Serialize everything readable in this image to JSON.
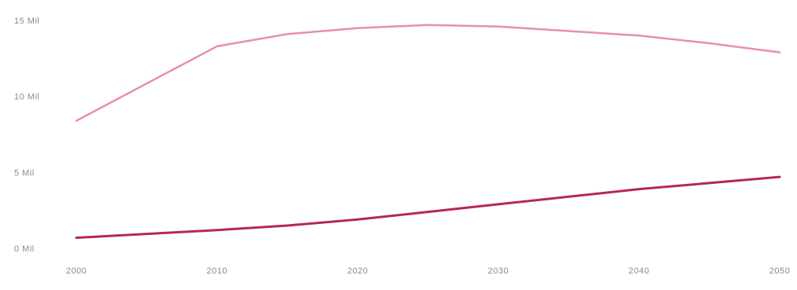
{
  "chart_data": {
    "type": "line",
    "title": "",
    "xlabel": "",
    "ylabel": "",
    "x": [
      2000,
      2010,
      2015,
      2020,
      2025,
      2030,
      2035,
      2040,
      2045,
      2050
    ],
    "xlim": [
      2000,
      2050
    ],
    "ylim": [
      0,
      15
    ],
    "x_ticks": [
      {
        "value": 2000,
        "label": "2000"
      },
      {
        "value": 2010,
        "label": "2010"
      },
      {
        "value": 2020,
        "label": "2020"
      },
      {
        "value": 2030,
        "label": "2030"
      },
      {
        "value": 2040,
        "label": "2040"
      },
      {
        "value": 2050,
        "label": "2050"
      }
    ],
    "y_ticks": [
      {
        "value": 0,
        "label": "0 Mil"
      },
      {
        "value": 5,
        "label": "5 Mil"
      },
      {
        "value": 10,
        "label": "10 Mil"
      },
      {
        "value": 15,
        "label": "15 Mil"
      }
    ],
    "grid": false,
    "legend": "none",
    "series": [
      {
        "values": [
          8.4,
          13.3,
          14.1,
          14.5,
          14.7,
          14.6,
          14.3,
          14.0,
          13.5,
          12.9
        ],
        "color": "#e890ab"
      },
      {
        "values": [
          0.7,
          1.2,
          1.5,
          1.9,
          2.4,
          2.9,
          3.4,
          3.9,
          4.3,
          4.7
        ],
        "color": "#b5275a"
      }
    ]
  }
}
